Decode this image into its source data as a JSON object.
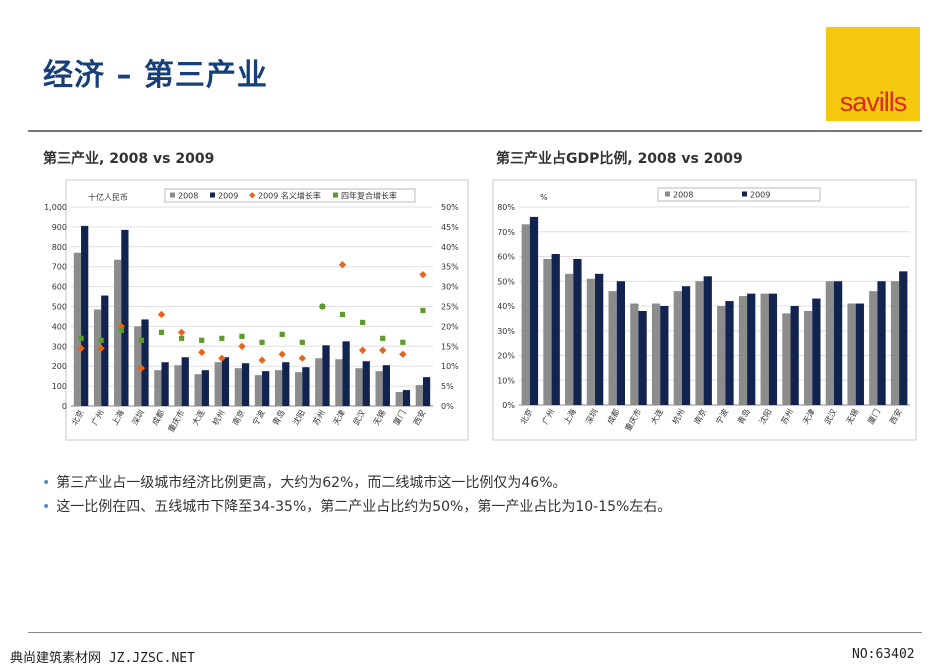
{
  "slide": {
    "title": "经济 – 第三产业",
    "logo_text": "savills",
    "bullets": [
      "第三产业占一级城市经济比例更高，大约为62%，而二线城市这一比例仅为46%。",
      "这一比例在四、五线城市下降至34-35%，第二产业占比约为50%，第一产业占比为10-15%左右。"
    ],
    "footer_left": "典尚建筑素材网 JZ.JZSC.NET",
    "footer_right": "NO:63402"
  },
  "colors": {
    "title": "#173f7a",
    "logo_bg": "#f3c80f",
    "logo_text": "#e0281e",
    "bar_2008": "#8c8c8c",
    "bar_2009": "#13234f",
    "nominal_growth": "#e8641b",
    "cagr": "#5f9a2e",
    "bullet": "#4f8ec9"
  },
  "chart_data": [
    {
      "type": "bar",
      "title": "第三产业, 2008 vs 2009",
      "ylabel": "十亿人民币",
      "ylim": [
        0,
        1000
      ],
      "yticks": [
        "0",
        "100",
        "200",
        "300",
        "400",
        "500",
        "600",
        "700",
        "800",
        "900",
        "1,000"
      ],
      "y2lim": [
        0,
        50
      ],
      "y2ticks": [
        "0%",
        "5%",
        "10%",
        "15%",
        "20%",
        "25%",
        "30%",
        "35%",
        "40%",
        "45%",
        "50%"
      ],
      "categories": [
        "北京",
        "广州",
        "上海",
        "深圳",
        "成都",
        "重庆市",
        "大连",
        "杭州",
        "南京",
        "宁波",
        "青岛",
        "沈阳",
        "苏州",
        "天津",
        "武汉",
        "无锡",
        "厦门",
        "西安"
      ],
      "series": [
        {
          "name": "2008",
          "kind": "bar",
          "values": [
            770,
            485,
            735,
            400,
            180,
            205,
            160,
            220,
            190,
            155,
            180,
            170,
            240,
            235,
            190,
            175,
            70,
            105
          ]
        },
        {
          "name": "2009",
          "kind": "bar",
          "values": [
            905,
            555,
            885,
            435,
            220,
            245,
            180,
            245,
            215,
            175,
            220,
            195,
            305,
            325,
            225,
            205,
            80,
            145
          ]
        },
        {
          "name": "2009 名义增长率",
          "kind": "scatter",
          "axis": "right",
          "values": [
            14.5,
            14.5,
            20,
            9.5,
            23,
            18.5,
            13.5,
            12,
            15,
            11.5,
            13,
            12,
            25,
            35.5,
            14,
            14,
            13,
            33
          ]
        },
        {
          "name": "四年复合增长率",
          "kind": "scatter",
          "axis": "right",
          "values": [
            17,
            16.5,
            19,
            16.5,
            18.5,
            17,
            16.5,
            17,
            17.5,
            16,
            18,
            16,
            25,
            23,
            21,
            17,
            16,
            24
          ]
        }
      ],
      "legend_position": "top"
    },
    {
      "type": "bar",
      "title": "第三产业占GDP比例, 2008 vs 2009",
      "ylabel": "%",
      "ylim": [
        0,
        80
      ],
      "yticks": [
        "0%",
        "10%",
        "20%",
        "30%",
        "40%",
        "50%",
        "60%",
        "70%",
        "80%"
      ],
      "categories": [
        "北京",
        "广州",
        "上海",
        "深圳",
        "成都",
        "重庆市",
        "大连",
        "杭州",
        "南京",
        "宁波",
        "青岛",
        "沈阳",
        "苏州",
        "天津",
        "武汉",
        "无锡",
        "厦门",
        "西安"
      ],
      "series": [
        {
          "name": "2008",
          "values": [
            73,
            59,
            53,
            51,
            46,
            41,
            41,
            46,
            50,
            40,
            44,
            45,
            37,
            38,
            50,
            41,
            46,
            50
          ]
        },
        {
          "name": "2009",
          "values": [
            76,
            61,
            59,
            53,
            50,
            38,
            40,
            48,
            52,
            42,
            45,
            45,
            40,
            43,
            50,
            41,
            50,
            54
          ]
        }
      ],
      "legend_position": "top"
    }
  ]
}
